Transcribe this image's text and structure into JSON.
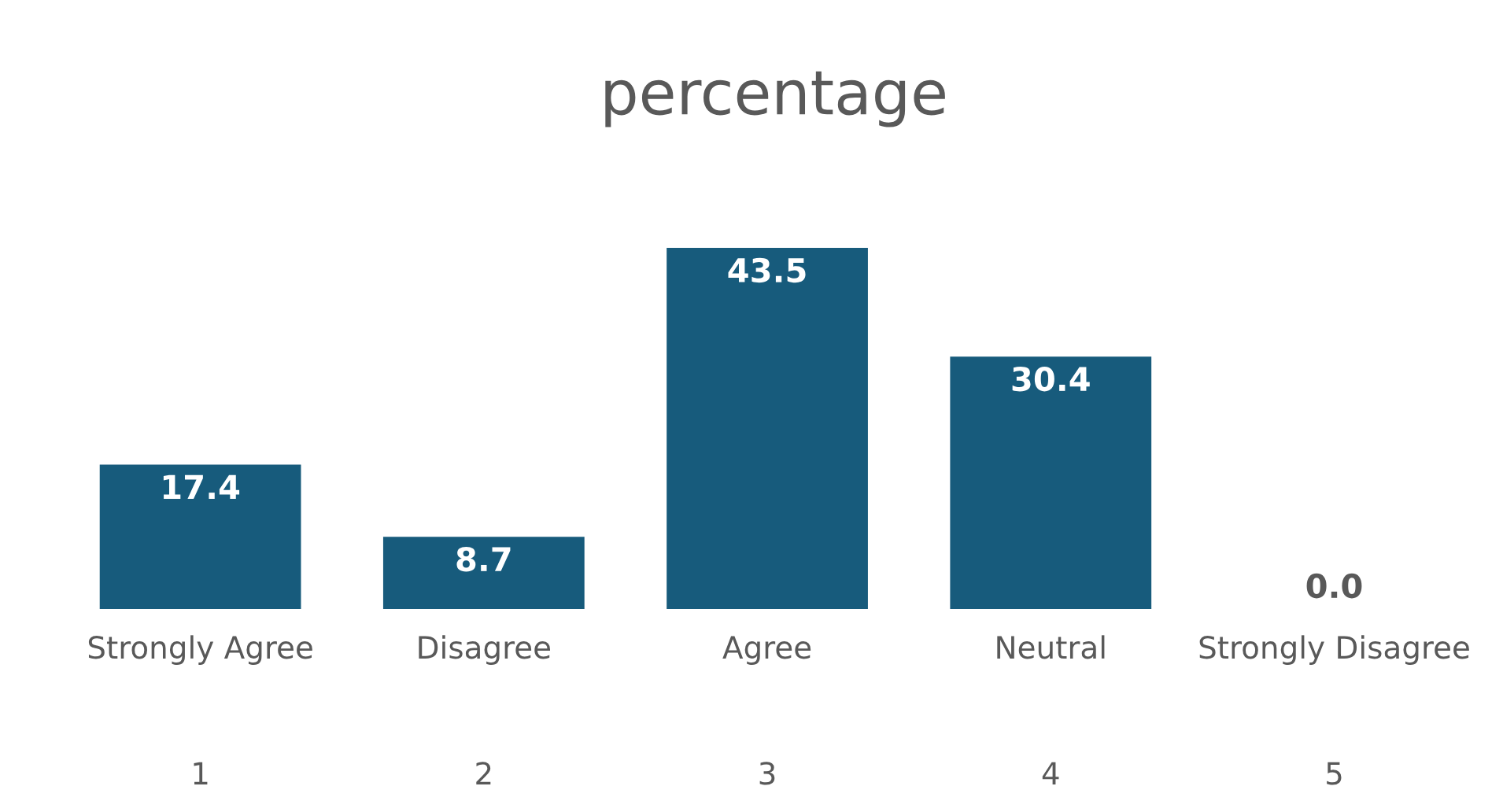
{
  "chart_data": {
    "type": "bar",
    "title": "percentage",
    "categories": [
      "Strongly Agree",
      "Disagree",
      "Agree",
      "Neutral",
      "Strongly Disagree"
    ],
    "values": [
      17.4,
      8.7,
      43.5,
      30.4,
      0.0
    ],
    "color": "#175b7c",
    "value_labels": [
      "17.4",
      "8.7",
      "43.5",
      "30.4",
      "0.0"
    ],
    "grid": false,
    "legend": false,
    "annotations": [
      "1",
      "2",
      "3",
      "4",
      "5"
    ]
  }
}
